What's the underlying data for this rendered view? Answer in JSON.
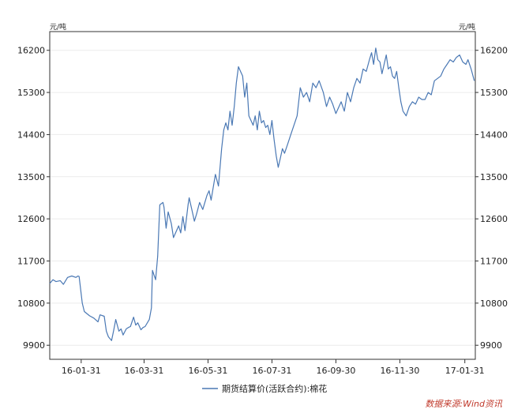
{
  "chart_data": {
    "type": "line",
    "unit_left": "元/吨",
    "unit_right": "元/吨",
    "ylim": [
      9600,
      16600
    ],
    "y_ticks": [
      "16200",
      "15300",
      "14400",
      "13500",
      "12600",
      "11700",
      "10800",
      "9900"
    ],
    "x_ticks": [
      "16-01-31",
      "16-03-31",
      "16-05-31",
      "16-07-31",
      "16-09-30",
      "16-11-30",
      "17-01-31"
    ],
    "xlim": [
      "2016-01-01",
      "2017-02-10"
    ],
    "grid": true,
    "legend_position": "bottom",
    "colors": {
      "series": "#4a78b4"
    },
    "series": [
      {
        "name": "期货结算价(活跃合约):棉花",
        "points": [
          [
            "2016-01-01",
            11220
          ],
          [
            "2016-01-04",
            11300
          ],
          [
            "2016-01-07",
            11260
          ],
          [
            "2016-01-11",
            11280
          ],
          [
            "2016-01-14",
            11200
          ],
          [
            "2016-01-18",
            11350
          ],
          [
            "2016-01-22",
            11380
          ],
          [
            "2016-01-26",
            11350
          ],
          [
            "2016-01-28",
            11380
          ],
          [
            "2016-01-29",
            11370
          ],
          [
            "2016-02-01",
            10800
          ],
          [
            "2016-02-03",
            10620
          ],
          [
            "2016-02-08",
            10530
          ],
          [
            "2016-02-12",
            10480
          ],
          [
            "2016-02-16",
            10400
          ],
          [
            "2016-02-18",
            10550
          ],
          [
            "2016-02-22",
            10520
          ],
          [
            "2016-02-24",
            10200
          ],
          [
            "2016-02-26",
            10080
          ],
          [
            "2016-02-29",
            10000
          ],
          [
            "2016-03-02",
            10220
          ],
          [
            "2016-03-04",
            10450
          ],
          [
            "2016-03-07",
            10200
          ],
          [
            "2016-03-09",
            10250
          ],
          [
            "2016-03-11",
            10120
          ],
          [
            "2016-03-14",
            10250
          ],
          [
            "2016-03-16",
            10280
          ],
          [
            "2016-03-18",
            10300
          ],
          [
            "2016-03-21",
            10500
          ],
          [
            "2016-03-23",
            10330
          ],
          [
            "2016-03-25",
            10380
          ],
          [
            "2016-03-28",
            10230
          ],
          [
            "2016-03-30",
            10280
          ],
          [
            "2016-04-01",
            10300
          ],
          [
            "2016-04-05",
            10450
          ],
          [
            "2016-04-07",
            10700
          ],
          [
            "2016-04-08",
            11500
          ],
          [
            "2016-04-11",
            11300
          ],
          [
            "2016-04-13",
            11800
          ],
          [
            "2016-04-15",
            12900
          ],
          [
            "2016-04-18",
            12950
          ],
          [
            "2016-04-19",
            12850
          ],
          [
            "2016-04-21",
            12400
          ],
          [
            "2016-04-23",
            12750
          ],
          [
            "2016-04-26",
            12500
          ],
          [
            "2016-04-28",
            12200
          ],
          [
            "2016-05-03",
            12450
          ],
          [
            "2016-05-05",
            12300
          ],
          [
            "2016-05-07",
            12650
          ],
          [
            "2016-05-09",
            12350
          ],
          [
            "2016-05-12",
            12900
          ],
          [
            "2016-05-13",
            13050
          ],
          [
            "2016-05-16",
            12750
          ],
          [
            "2016-05-18",
            12550
          ],
          [
            "2016-05-20",
            12700
          ],
          [
            "2016-05-23",
            12950
          ],
          [
            "2016-05-26",
            12800
          ],
          [
            "2016-05-30",
            13100
          ],
          [
            "2016-06-01",
            13200
          ],
          [
            "2016-06-03",
            13000
          ],
          [
            "2016-06-07",
            13550
          ],
          [
            "2016-06-10",
            13300
          ],
          [
            "2016-06-13",
            14100
          ],
          [
            "2016-06-15",
            14500
          ],
          [
            "2016-06-17",
            14650
          ],
          [
            "2016-06-19",
            14500
          ],
          [
            "2016-06-21",
            14900
          ],
          [
            "2016-06-23",
            14600
          ],
          [
            "2016-06-25",
            15000
          ],
          [
            "2016-06-27",
            15500
          ],
          [
            "2016-06-29",
            15850
          ],
          [
            "2016-07-01",
            15750
          ],
          [
            "2016-07-03",
            15650
          ],
          [
            "2016-07-05",
            15200
          ],
          [
            "2016-07-07",
            15500
          ],
          [
            "2016-07-09",
            14800
          ],
          [
            "2016-07-11",
            14700
          ],
          [
            "2016-07-13",
            14600
          ],
          [
            "2016-07-15",
            14800
          ],
          [
            "2016-07-17",
            14500
          ],
          [
            "2016-07-19",
            14900
          ],
          [
            "2016-07-21",
            14650
          ],
          [
            "2016-07-23",
            14700
          ],
          [
            "2016-07-25",
            14550
          ],
          [
            "2016-07-27",
            14600
          ],
          [
            "2016-07-29",
            14400
          ],
          [
            "2016-07-31",
            14700
          ],
          [
            "2016-08-02",
            14300
          ],
          [
            "2016-08-04",
            13950
          ],
          [
            "2016-08-06",
            13700
          ],
          [
            "2016-08-08",
            13900
          ],
          [
            "2016-08-10",
            14100
          ],
          [
            "2016-08-12",
            14000
          ],
          [
            "2016-08-15",
            14200
          ],
          [
            "2016-08-18",
            14400
          ],
          [
            "2016-08-21",
            14600
          ],
          [
            "2016-08-24",
            14800
          ],
          [
            "2016-08-27",
            15400
          ],
          [
            "2016-08-30",
            15200
          ],
          [
            "2016-09-02",
            15300
          ],
          [
            "2016-09-05",
            15100
          ],
          [
            "2016-09-08",
            15500
          ],
          [
            "2016-09-11",
            15400
          ],
          [
            "2016-09-14",
            15550
          ],
          [
            "2016-09-18",
            15300
          ],
          [
            "2016-09-21",
            15000
          ],
          [
            "2016-09-24",
            15200
          ],
          [
            "2016-09-27",
            15050
          ],
          [
            "2016-09-30",
            14850
          ],
          [
            "2016-10-05",
            15100
          ],
          [
            "2016-10-08",
            14900
          ],
          [
            "2016-10-11",
            15300
          ],
          [
            "2016-10-14",
            15100
          ],
          [
            "2016-10-17",
            15400
          ],
          [
            "2016-10-20",
            15600
          ],
          [
            "2016-10-23",
            15500
          ],
          [
            "2016-10-26",
            15800
          ],
          [
            "2016-10-29",
            15750
          ],
          [
            "2016-11-01",
            16000
          ],
          [
            "2016-11-03",
            16150
          ],
          [
            "2016-11-05",
            15900
          ],
          [
            "2016-11-07",
            16250
          ],
          [
            "2016-11-09",
            16000
          ],
          [
            "2016-11-11",
            15950
          ],
          [
            "2016-11-13",
            15700
          ],
          [
            "2016-11-15",
            15900
          ],
          [
            "2016-11-17",
            16100
          ],
          [
            "2016-11-19",
            15800
          ],
          [
            "2016-11-21",
            15850
          ],
          [
            "2016-11-23",
            15650
          ],
          [
            "2016-11-25",
            15600
          ],
          [
            "2016-11-27",
            15750
          ],
          [
            "2016-11-29",
            15400
          ],
          [
            "2016-12-01",
            15100
          ],
          [
            "2016-12-03",
            14900
          ],
          [
            "2016-12-06",
            14800
          ],
          [
            "2016-12-09",
            15000
          ],
          [
            "2016-12-12",
            15100
          ],
          [
            "2016-12-15",
            15050
          ],
          [
            "2016-12-18",
            15200
          ],
          [
            "2016-12-21",
            15150
          ],
          [
            "2016-12-24",
            15150
          ],
          [
            "2016-12-27",
            15300
          ],
          [
            "2016-12-30",
            15250
          ],
          [
            "2017-01-02",
            15550
          ],
          [
            "2017-01-05",
            15600
          ],
          [
            "2017-01-08",
            15650
          ],
          [
            "2017-01-11",
            15800
          ],
          [
            "2017-01-14",
            15900
          ],
          [
            "2017-01-17",
            16000
          ],
          [
            "2017-01-20",
            15950
          ],
          [
            "2017-01-23",
            16050
          ],
          [
            "2017-01-26",
            16100
          ],
          [
            "2017-01-29",
            15950
          ],
          [
            "2017-02-01",
            15900
          ],
          [
            "2017-02-03",
            16000
          ],
          [
            "2017-02-06",
            15800
          ],
          [
            "2017-02-09",
            15550
          ]
        ]
      }
    ]
  },
  "footer": {
    "source": "数据来源:Wind资讯"
  }
}
